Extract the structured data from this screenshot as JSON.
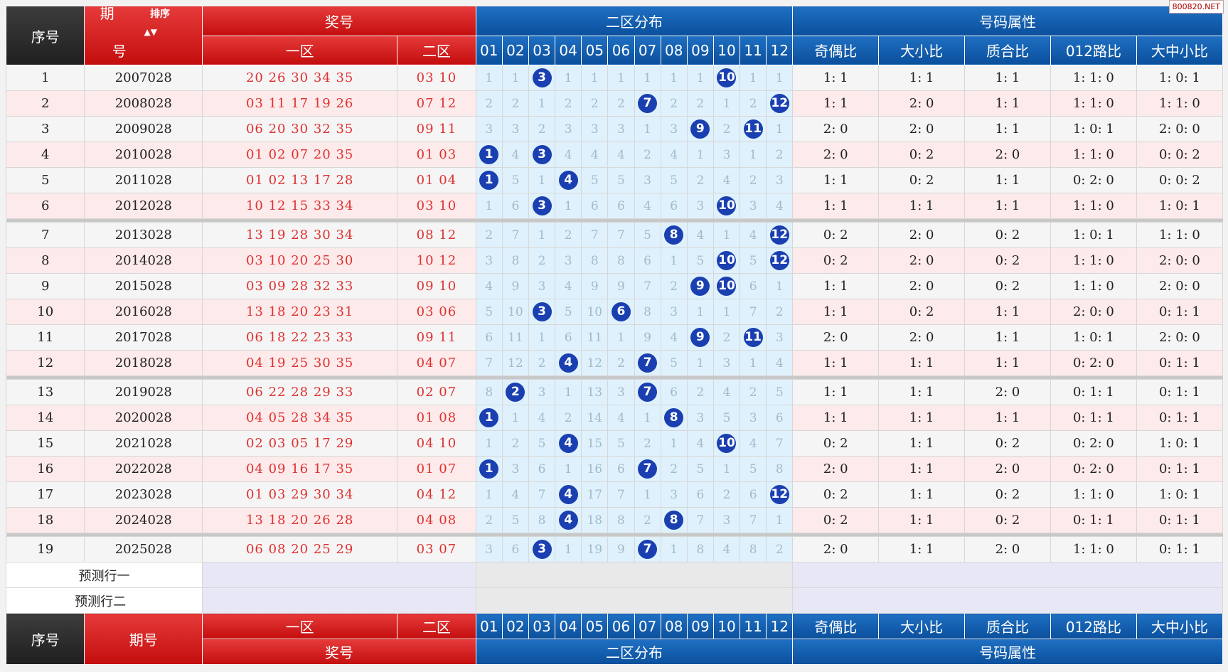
{
  "watermark": "800820.NET",
  "header": {
    "seq": "序号",
    "period_a": "期",
    "period_b": "号",
    "sort": "排序",
    "prize": "奖号",
    "zone1": "一区",
    "zone2": "二区",
    "dist": "二区分布",
    "attrs": "号码属性",
    "dist_cols": [
      "01",
      "02",
      "03",
      "04",
      "05",
      "06",
      "07",
      "08",
      "09",
      "10",
      "11",
      "12"
    ],
    "attr_cols": [
      "奇偶比",
      "大小比",
      "质合比",
      "012路比",
      "大中小比"
    ]
  },
  "footer": {
    "seq": "序号",
    "period": "期号",
    "prize": "奖号",
    "zone1": "一区",
    "zone2": "二区",
    "dist": "二区分布",
    "attrs": "号码属性"
  },
  "predict": [
    "预测行一",
    "预测行二"
  ],
  "colors": {
    "red_header": "#d41a1a",
    "blue_header": "#0d59a8",
    "ball": "#1a3fb0",
    "prize_text": "#e03030"
  },
  "rows": [
    {
      "seq": "1",
      "period": "2007028",
      "z1": "20 26 30 34 35",
      "z2": "03 10",
      "dist": [
        "1",
        "1",
        "3",
        "1",
        "1",
        "1",
        "1",
        "1",
        "1",
        "10",
        "1",
        "1"
      ],
      "attr": [
        "1: 1",
        "1: 1",
        "1: 1",
        "1: 1: 0",
        "1: 0: 1"
      ]
    },
    {
      "seq": "2",
      "period": "2008028",
      "z1": "03 11 17 19 26",
      "z2": "07 12",
      "dist": [
        "2",
        "2",
        "1",
        "2",
        "2",
        "2",
        "7",
        "2",
        "2",
        "1",
        "2",
        "12"
      ],
      "attr": [
        "1: 1",
        "2: 0",
        "1: 1",
        "1: 1: 0",
        "1: 1: 0"
      ]
    },
    {
      "seq": "3",
      "period": "2009028",
      "z1": "06 20 30 32 35",
      "z2": "09 11",
      "dist": [
        "3",
        "3",
        "2",
        "3",
        "3",
        "3",
        "1",
        "3",
        "9",
        "2",
        "11",
        "1"
      ],
      "attr": [
        "2: 0",
        "2: 0",
        "1: 1",
        "1: 0: 1",
        "2: 0: 0"
      ]
    },
    {
      "seq": "4",
      "period": "2010028",
      "z1": "01 02 07 20 35",
      "z2": "01 03",
      "dist": [
        "1",
        "4",
        "3",
        "4",
        "4",
        "4",
        "2",
        "4",
        "1",
        "3",
        "1",
        "2"
      ],
      "attr": [
        "2: 0",
        "0: 2",
        "2: 0",
        "1: 1: 0",
        "0: 0: 2"
      ]
    },
    {
      "seq": "5",
      "period": "2011028",
      "z1": "01 02 13 17 28",
      "z2": "01 04",
      "dist": [
        "1",
        "5",
        "1",
        "4",
        "5",
        "5",
        "3",
        "5",
        "2",
        "4",
        "2",
        "3"
      ],
      "attr": [
        "1: 1",
        "0: 2",
        "1: 1",
        "0: 2: 0",
        "0: 0: 2"
      ]
    },
    {
      "seq": "6",
      "period": "2012028",
      "z1": "10 12 15 33 34",
      "z2": "03 10",
      "dist": [
        "1",
        "6",
        "3",
        "1",
        "6",
        "6",
        "4",
        "6",
        "3",
        "10",
        "3",
        "4"
      ],
      "attr": [
        "1: 1",
        "1: 1",
        "1: 1",
        "1: 1: 0",
        "1: 0: 1"
      ]
    },
    {
      "seq": "7",
      "period": "2013028",
      "z1": "13 19 28 30 34",
      "z2": "08 12",
      "dist": [
        "2",
        "7",
        "1",
        "2",
        "7",
        "7",
        "5",
        "8",
        "4",
        "1",
        "4",
        "12"
      ],
      "attr": [
        "0: 2",
        "2: 0",
        "0: 2",
        "1: 0: 1",
        "1: 1: 0"
      ]
    },
    {
      "seq": "8",
      "period": "2014028",
      "z1": "03 10 20 25 30",
      "z2": "10 12",
      "dist": [
        "3",
        "8",
        "2",
        "3",
        "8",
        "8",
        "6",
        "1",
        "5",
        "10",
        "5",
        "12"
      ],
      "attr": [
        "0: 2",
        "2: 0",
        "0: 2",
        "1: 1: 0",
        "2: 0: 0"
      ]
    },
    {
      "seq": "9",
      "period": "2015028",
      "z1": "03 09 28 32 33",
      "z2": "09 10",
      "dist": [
        "4",
        "9",
        "3",
        "4",
        "9",
        "9",
        "7",
        "2",
        "9",
        "10",
        "6",
        "1"
      ],
      "attr": [
        "1: 1",
        "2: 0",
        "0: 2",
        "1: 1: 0",
        "2: 0: 0"
      ]
    },
    {
      "seq": "10",
      "period": "2016028",
      "z1": "13 18 20 23 31",
      "z2": "03 06",
      "dist": [
        "5",
        "10",
        "3",
        "5",
        "10",
        "6",
        "8",
        "3",
        "1",
        "1",
        "7",
        "2"
      ],
      "attr": [
        "1: 1",
        "0: 2",
        "1: 1",
        "2: 0: 0",
        "0: 1: 1"
      ]
    },
    {
      "seq": "11",
      "period": "2017028",
      "z1": "06 18 22 23 33",
      "z2": "09 11",
      "dist": [
        "6",
        "11",
        "1",
        "6",
        "11",
        "1",
        "9",
        "4",
        "9",
        "2",
        "11",
        "3"
      ],
      "attr": [
        "2: 0",
        "2: 0",
        "1: 1",
        "1: 0: 1",
        "2: 0: 0"
      ]
    },
    {
      "seq": "12",
      "period": "2018028",
      "z1": "04 19 25 30 35",
      "z2": "04 07",
      "dist": [
        "7",
        "12",
        "2",
        "4",
        "12",
        "2",
        "7",
        "5",
        "1",
        "3",
        "1",
        "4"
      ],
      "attr": [
        "1: 1",
        "1: 1",
        "1: 1",
        "0: 2: 0",
        "0: 1: 1"
      ]
    },
    {
      "seq": "13",
      "period": "2019028",
      "z1": "06 22 28 29 33",
      "z2": "02 07",
      "dist": [
        "8",
        "2",
        "3",
        "1",
        "13",
        "3",
        "7",
        "6",
        "2",
        "4",
        "2",
        "5"
      ],
      "attr": [
        "1: 1",
        "1: 1",
        "2: 0",
        "0: 1: 1",
        "0: 1: 1"
      ]
    },
    {
      "seq": "14",
      "period": "2020028",
      "z1": "04 05 28 34 35",
      "z2": "01 08",
      "dist": [
        "1",
        "1",
        "4",
        "2",
        "14",
        "4",
        "1",
        "8",
        "3",
        "5",
        "3",
        "6"
      ],
      "attr": [
        "1: 1",
        "1: 1",
        "1: 1",
        "0: 1: 1",
        "0: 1: 1"
      ]
    },
    {
      "seq": "15",
      "period": "2021028",
      "z1": "02 03 05 17 29",
      "z2": "04 10",
      "dist": [
        "1",
        "2",
        "5",
        "4",
        "15",
        "5",
        "2",
        "1",
        "4",
        "10",
        "4",
        "7"
      ],
      "attr": [
        "0: 2",
        "1: 1",
        "0: 2",
        "0: 2: 0",
        "1: 0: 1"
      ]
    },
    {
      "seq": "16",
      "period": "2022028",
      "z1": "04 09 16 17 35",
      "z2": "01 07",
      "dist": [
        "1",
        "3",
        "6",
        "1",
        "16",
        "6",
        "7",
        "2",
        "5",
        "1",
        "5",
        "8"
      ],
      "attr": [
        "2: 0",
        "1: 1",
        "2: 0",
        "0: 2: 0",
        "0: 1: 1"
      ]
    },
    {
      "seq": "17",
      "period": "2023028",
      "z1": "01 03 29 30 34",
      "z2": "04 12",
      "dist": [
        "1",
        "4",
        "7",
        "4",
        "17",
        "7",
        "1",
        "3",
        "6",
        "2",
        "6",
        "12"
      ],
      "attr": [
        "0: 2",
        "1: 1",
        "0: 2",
        "1: 1: 0",
        "1: 0: 1"
      ]
    },
    {
      "seq": "18",
      "period": "2024028",
      "z1": "13 18 20 26 28",
      "z2": "04 08",
      "dist": [
        "2",
        "5",
        "8",
        "4",
        "18",
        "8",
        "2",
        "8",
        "7",
        "3",
        "7",
        "1"
      ],
      "attr": [
        "0: 2",
        "1: 1",
        "0: 2",
        "0: 1: 1",
        "0: 1: 1"
      ]
    },
    {
      "seq": "19",
      "period": "2025028",
      "z1": "06 08 20 25 29",
      "z2": "03 07",
      "dist": [
        "3",
        "6",
        "3",
        "1",
        "19",
        "9",
        "7",
        "1",
        "8",
        "4",
        "8",
        "2"
      ],
      "attr": [
        "2: 0",
        "1: 1",
        "2: 0",
        "1: 1: 0",
        "0: 1: 1"
      ]
    }
  ],
  "balls": [
    [
      2,
      9
    ],
    [
      6,
      11
    ],
    [
      8,
      10
    ],
    [
      0,
      2
    ],
    [
      0,
      3
    ],
    [
      2,
      9
    ],
    [
      7,
      11
    ],
    [
      9,
      11
    ],
    [
      8,
      9
    ],
    [
      2,
      5
    ],
    [
      8,
      10
    ],
    [
      3,
      6
    ],
    [
      1,
      6
    ],
    [
      0,
      7
    ],
    [
      3,
      9
    ],
    [
      0,
      6
    ],
    [
      3,
      11
    ],
    [
      3,
      7
    ],
    [
      2,
      6
    ]
  ]
}
